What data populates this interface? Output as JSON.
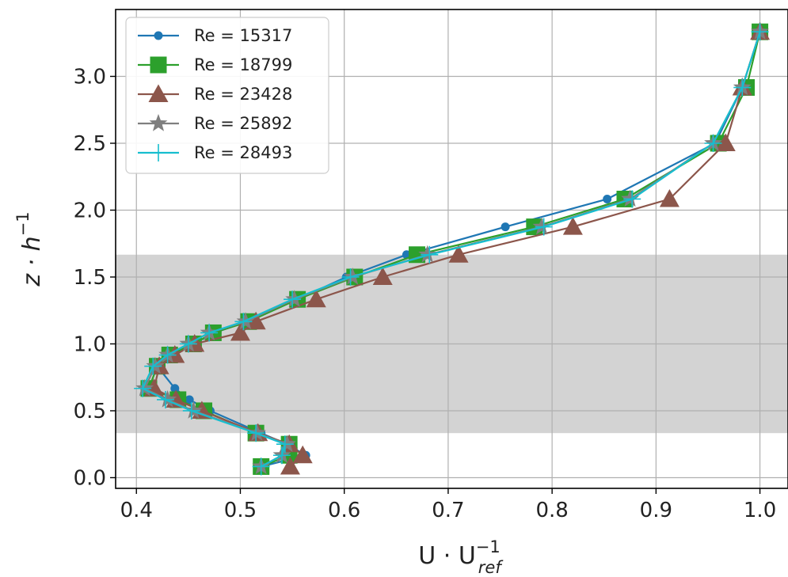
{
  "chart_data": {
    "type": "line",
    "xlabel_main": "U · U",
    "xlabel_sup": "−1",
    "xlabel_sub": "ref",
    "ylabel_main": "z · h",
    "ylabel_sup": "−1",
    "xlim": [
      0.38,
      1.027
    ],
    "ylim": [
      -0.08,
      3.5
    ],
    "xticks": [
      0.4,
      0.5,
      0.6,
      0.7,
      0.8,
      0.9,
      1.0
    ],
    "xtick_labels": [
      "0.4",
      "0.5",
      "0.6",
      "0.7",
      "0.8",
      "0.9",
      "1.0"
    ],
    "yticks": [
      0.0,
      0.5,
      1.0,
      1.5,
      2.0,
      2.5,
      3.0
    ],
    "ytick_labels": [
      "0.0",
      "0.5",
      "1.0",
      "1.5",
      "2.0",
      "2.5",
      "3.0"
    ],
    "grid": true,
    "shaded_band": [
      0.333,
      1.667
    ],
    "shaded_color": "#d3d3d3",
    "legend_position": "top-left",
    "series": [
      {
        "name": "Re = 15317",
        "color": "#1f77b4",
        "marker": "circle",
        "x": [
          0.52,
          0.563,
          0.545,
          0.52,
          0.471,
          0.451,
          0.437,
          0.42,
          0.437,
          0.455,
          0.475,
          0.506,
          0.555,
          0.602,
          0.66,
          0.755,
          0.853,
          0.957,
          0.983,
          1.0
        ],
        "y": [
          0.083,
          0.167,
          0.25,
          0.333,
          0.5,
          0.583,
          0.667,
          0.833,
          0.917,
          1.0,
          1.083,
          1.167,
          1.333,
          1.5,
          1.667,
          1.875,
          2.083,
          2.5,
          2.917,
          3.333
        ]
      },
      {
        "name": "Re = 18799",
        "color": "#2ca02c",
        "marker": "square",
        "x": [
          0.52,
          0.547,
          0.547,
          0.515,
          0.465,
          0.44,
          0.412,
          0.42,
          0.432,
          0.455,
          0.474,
          0.508,
          0.555,
          0.61,
          0.67,
          0.783,
          0.87,
          0.96,
          0.987,
          1.0
        ],
        "y": [
          0.083,
          0.167,
          0.25,
          0.333,
          0.5,
          0.583,
          0.667,
          0.833,
          0.917,
          1.0,
          1.083,
          1.167,
          1.333,
          1.5,
          1.667,
          1.875,
          2.083,
          2.5,
          2.917,
          3.333
        ]
      },
      {
        "name": "Re = 23428",
        "color": "#8c564b",
        "marker": "triangle",
        "x": [
          0.548,
          0.56,
          0.547,
          0.517,
          0.463,
          0.438,
          0.417,
          0.422,
          0.437,
          0.456,
          0.5,
          0.515,
          0.573,
          0.637,
          0.71,
          0.82,
          0.913,
          0.967,
          0.983,
          1.0
        ],
        "y": [
          0.083,
          0.167,
          0.25,
          0.333,
          0.5,
          0.583,
          0.667,
          0.833,
          0.917,
          1.0,
          1.083,
          1.167,
          1.333,
          1.5,
          1.667,
          1.875,
          2.083,
          2.5,
          2.917,
          3.333
        ]
      },
      {
        "name": "Re = 25892",
        "color": "#7f7f7f",
        "marker": "star",
        "x": [
          0.52,
          0.54,
          0.545,
          0.516,
          0.455,
          0.43,
          0.408,
          0.418,
          0.43,
          0.45,
          0.47,
          0.505,
          0.552,
          0.608,
          0.68,
          0.79,
          0.875,
          0.955,
          0.983,
          1.0
        ],
        "y": [
          0.083,
          0.167,
          0.25,
          0.333,
          0.5,
          0.583,
          0.667,
          0.833,
          0.917,
          1.0,
          1.083,
          1.167,
          1.333,
          1.5,
          1.667,
          1.875,
          2.083,
          2.5,
          2.917,
          3.333
        ]
      },
      {
        "name": "Re = 28493",
        "color": "#17becf",
        "marker": "plus",
        "x": [
          0.52,
          0.54,
          0.543,
          0.515,
          0.453,
          0.428,
          0.406,
          0.416,
          0.43,
          0.45,
          0.47,
          0.503,
          0.55,
          0.606,
          0.682,
          0.792,
          0.877,
          0.955,
          0.983,
          1.0
        ],
        "y": [
          0.083,
          0.167,
          0.25,
          0.333,
          0.5,
          0.583,
          0.667,
          0.833,
          0.917,
          1.0,
          1.083,
          1.167,
          1.333,
          1.5,
          1.667,
          1.875,
          2.083,
          2.5,
          2.917,
          3.333
        ]
      }
    ]
  }
}
